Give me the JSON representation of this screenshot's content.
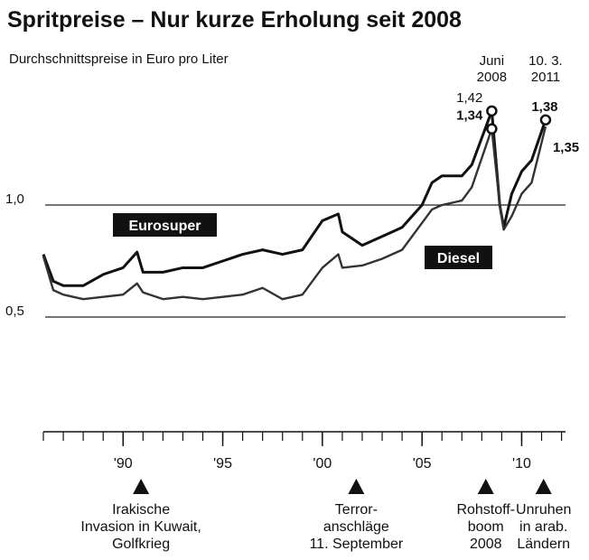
{
  "chart_data": {
    "type": "line",
    "title": "Spritpreise – Nur kurze Erholung seit 2008",
    "subtitle": "Durchschnittspreise in Euro pro Liter",
    "xlim": [
      1986,
      2012.2
    ],
    "ylim": [
      0,
      1.55
    ],
    "yticks": [
      {
        "value": 0.5,
        "label": "0,5"
      },
      {
        "value": 1.0,
        "label": "1,0"
      }
    ],
    "xticks": [
      {
        "value": 1990,
        "label": "'90"
      },
      {
        "value": 1995,
        "label": "'95"
      },
      {
        "value": 2000,
        "label": "'00"
      },
      {
        "value": 2005,
        "label": "'05"
      },
      {
        "value": 2010,
        "label": "'10"
      }
    ],
    "xminor_ticks": [
      1986,
      1987,
      1988,
      1989,
      1990,
      1991,
      1992,
      1993,
      1994,
      1995,
      1996,
      1997,
      1998,
      1999,
      2000,
      2001,
      2002,
      2003,
      2004,
      2005,
      2006,
      2007,
      2008,
      2009,
      2010,
      2011,
      2012
    ],
    "grid": true,
    "x": [
      1986,
      1986.5,
      1987,
      1988,
      1989,
      1990,
      1990.7,
      1991,
      1992,
      1993,
      1994,
      1995,
      1996,
      1997,
      1998,
      1999,
      2000,
      2000.8,
      2001,
      2002,
      2003,
      2004,
      2005,
      2005.5,
      2006,
      2007,
      2007.5,
      2008.5,
      2008.9,
      2009.1,
      2009.5,
      2010,
      2010.5,
      2011.2
    ],
    "series": [
      {
        "name": "Eurosuper",
        "color": "#111111",
        "values": [
          0.78,
          0.66,
          0.64,
          0.64,
          0.69,
          0.72,
          0.79,
          0.7,
          0.7,
          0.72,
          0.72,
          0.75,
          0.78,
          0.8,
          0.78,
          0.8,
          0.93,
          0.96,
          0.88,
          0.82,
          0.86,
          0.9,
          1.0,
          1.1,
          1.13,
          1.13,
          1.18,
          1.42,
          1.0,
          0.9,
          1.05,
          1.15,
          1.2,
          1.38
        ],
        "value_labels": [
          null,
          null,
          null,
          null,
          null,
          null,
          null,
          null,
          null,
          null,
          null,
          null,
          null,
          null,
          null,
          null,
          null,
          null,
          null,
          null,
          null,
          null,
          null,
          null,
          null,
          null,
          null,
          "1,42",
          null,
          null,
          null,
          null,
          null,
          "1,38"
        ]
      },
      {
        "name": "Diesel",
        "color": "#333333",
        "values": [
          0.77,
          0.62,
          0.6,
          0.58,
          0.59,
          0.6,
          0.65,
          0.61,
          0.58,
          0.59,
          0.58,
          0.59,
          0.6,
          0.63,
          0.58,
          0.6,
          0.72,
          0.78,
          0.72,
          0.73,
          0.76,
          0.8,
          0.92,
          0.98,
          1.0,
          1.02,
          1.08,
          1.34,
          1.0,
          0.89,
          0.95,
          1.05,
          1.1,
          1.35
        ],
        "value_labels": [
          null,
          null,
          null,
          null,
          null,
          null,
          null,
          null,
          null,
          null,
          null,
          null,
          null,
          null,
          null,
          null,
          null,
          null,
          null,
          null,
          null,
          null,
          null,
          null,
          null,
          null,
          null,
          "1,34",
          null,
          null,
          null,
          null,
          null,
          "1,35"
        ]
      }
    ],
    "annotations": [
      {
        "x": 2008.5,
        "lines": [
          "Juni",
          "2008"
        ]
      },
      {
        "x": 2011.2,
        "lines": [
          "10. 3.",
          "2011"
        ]
      }
    ],
    "events": [
      {
        "x": 1990.9,
        "lines": [
          "Irakische",
          "Invasion in Kuwait,",
          "Golfkrieg"
        ]
      },
      {
        "x": 2001.7,
        "lines": [
          "Terror-",
          "anschläge",
          "11. September"
        ]
      },
      {
        "x": 2008.2,
        "lines": [
          "Rohstoff-",
          "boom",
          "2008"
        ]
      },
      {
        "x": 2011.1,
        "lines": [
          "Unruhen",
          "in arab.",
          "Ländern"
        ]
      }
    ]
  }
}
